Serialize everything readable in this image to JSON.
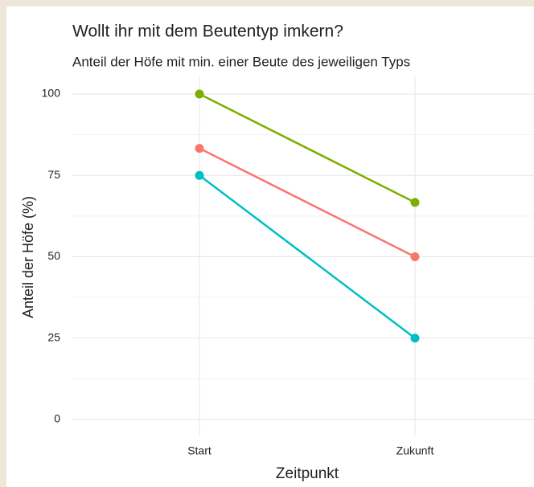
{
  "chart_data": {
    "type": "line",
    "title": "Wollt ihr mit dem Beutentyp imkern?",
    "subtitle": "Anteil der Höfe mit min. einer Beute des jeweiligen Typs",
    "x_label": "Zeitpunkt",
    "y_label": "Anteil der Höfe (%)",
    "categories": [
      "Start",
      "Zukunft"
    ],
    "series": [
      {
        "color": "#7CAE00",
        "values": [
          100,
          66.7
        ]
      },
      {
        "color": "#F8766D",
        "values": [
          83.3,
          50
        ]
      },
      {
        "color": "#00BFC4",
        "values": [
          75,
          25
        ]
      }
    ],
    "ylim": [
      0,
      100
    ],
    "yticks": [
      0,
      25,
      50,
      75,
      100
    ],
    "grid": true
  }
}
